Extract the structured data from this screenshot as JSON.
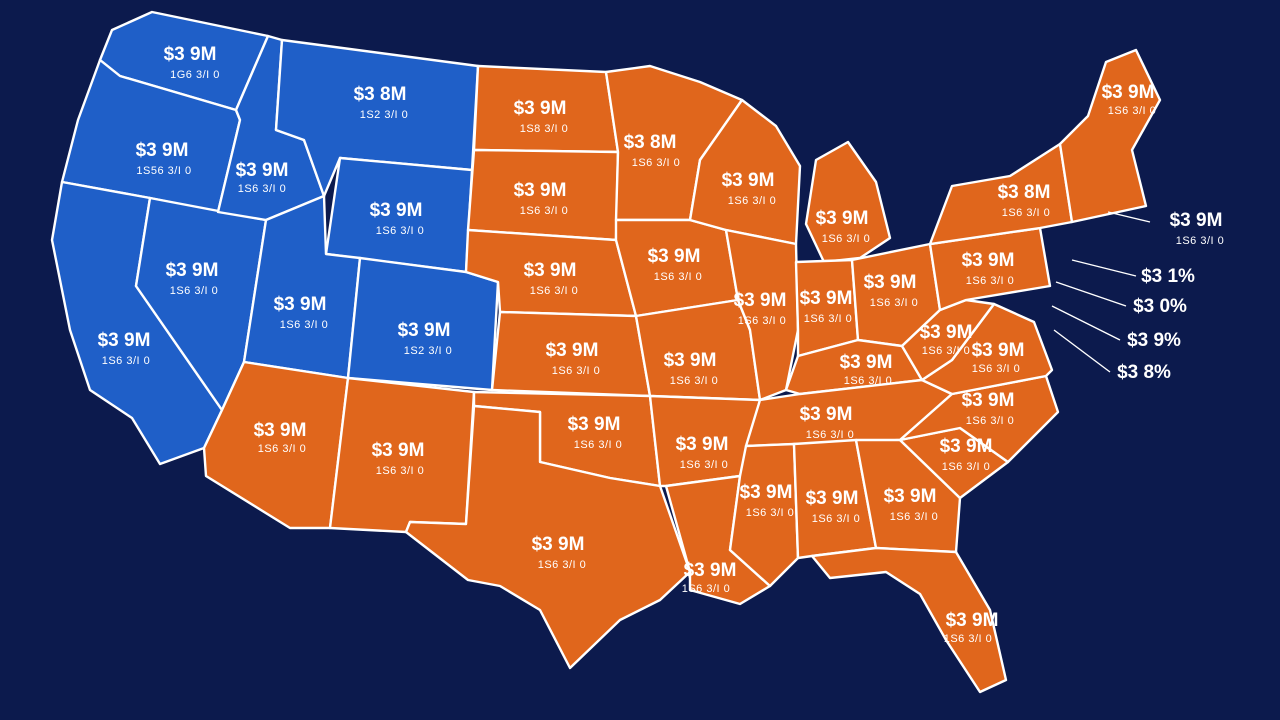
{
  "colors": {
    "background": "#0c1a4d",
    "blue": "#1f5fc8",
    "orange": "#e0661c",
    "border": "#ffffff"
  },
  "states": {
    "wa": {
      "fill": "blue",
      "value": "$3 9M",
      "sub": "1G6 3/I 0"
    },
    "or": {
      "fill": "blue",
      "value": "$3 9M",
      "sub": "1S56 3/I 0"
    },
    "ca": {
      "fill": "blue",
      "value": "$3 9M",
      "sub": "1S6 3/I 0"
    },
    "nv": {
      "fill": "blue",
      "value": "$3 9M",
      "sub": "1S6 3/I 0"
    },
    "id": {
      "fill": "blue",
      "value": "$3 9M",
      "sub": "1S6 3/I 0"
    },
    "mt": {
      "fill": "blue",
      "value": "$3 8M",
      "sub": "1S2 3/I 0"
    },
    "wy": {
      "fill": "blue",
      "value": "$3 9M",
      "sub": "1S6 3/I 0"
    },
    "ut": {
      "fill": "blue",
      "value": "$3 9M",
      "sub": "1S6 3/I 0"
    },
    "co": {
      "fill": "blue",
      "value": "$3 9M",
      "sub": "1S2 3/I 0"
    },
    "az": {
      "fill": "orange",
      "value": "$3 9M",
      "sub": "1S6 3/I 0"
    },
    "nm": {
      "fill": "orange",
      "value": "$3 9M",
      "sub": "1S6 3/I 0"
    },
    "nd": {
      "fill": "orange",
      "value": "$3 9M",
      "sub": "1S8 3/I 0"
    },
    "sd": {
      "fill": "orange",
      "value": "$3 9M",
      "sub": "1S6 3/I 0"
    },
    "ne": {
      "fill": "orange",
      "value": "$3 9M",
      "sub": "1S6 3/I 0"
    },
    "ks": {
      "fill": "orange",
      "value": "$3 9M",
      "sub": "1S6 3/I 0"
    },
    "ok": {
      "fill": "orange",
      "value": "$3 9M",
      "sub": "1S6 3/I 0"
    },
    "tx": {
      "fill": "orange",
      "value": "$3 9M",
      "sub": "1S6 3/I 0"
    },
    "mn": {
      "fill": "orange",
      "value": "$3 8M",
      "sub": "1S6 3/I 0"
    },
    "ia": {
      "fill": "orange",
      "value": "$3 9M",
      "sub": "1S6 3/I 0"
    },
    "mo": {
      "fill": "orange",
      "value": "$3 9M",
      "sub": "1S6 3/I 0"
    },
    "ar": {
      "fill": "orange",
      "value": "$3 9M",
      "sub": "1S6 3/I 0"
    },
    "la": {
      "fill": "orange",
      "value": "$3 9M",
      "sub": "1S6 3/I 0"
    },
    "wi": {
      "fill": "orange",
      "value": "$3 9M",
      "sub": "1S6 3/I 0"
    },
    "il": {
      "fill": "orange",
      "value": "$3 9M",
      "sub": "1S6 3/I 0"
    },
    "mi": {
      "fill": "orange",
      "value": "$3 9M",
      "sub": "1S6 3/I 0"
    },
    "in": {
      "fill": "orange",
      "value": "$3 9M",
      "sub": "1S6 3/I 0"
    },
    "oh": {
      "fill": "orange",
      "value": "$3 9M",
      "sub": "1S6 3/I 0"
    },
    "ky": {
      "fill": "orange",
      "value": "$3 9M",
      "sub": "1S6 3/I 0"
    },
    "tn": {
      "fill": "orange",
      "value": "$3 9M",
      "sub": "1S6 3/I 0"
    },
    "ms": {
      "fill": "orange",
      "value": "$3 9M",
      "sub": "1S6 3/I 0"
    },
    "al": {
      "fill": "orange",
      "value": "$3 9M",
      "sub": "1S6 3/I 0"
    },
    "ga": {
      "fill": "orange",
      "value": "$3 9M",
      "sub": "1S6 3/I 0"
    },
    "fl": {
      "fill": "orange",
      "value": "$3 9M",
      "sub": "1S6 3/I 0"
    },
    "sc": {
      "fill": "orange",
      "value": "$3 9M",
      "sub": "1S6 3/I 0"
    },
    "nc": {
      "fill": "orange",
      "value": "$3 9M",
      "sub": "1S6 3/I 0"
    },
    "va": {
      "fill": "orange",
      "value": "$3 9M",
      "sub": "1S6 3/I 0"
    },
    "wv": {
      "fill": "orange",
      "value": "$3 9M",
      "sub": "1S6 3/I 0"
    },
    "pa": {
      "fill": "orange",
      "value": "$3 9M",
      "sub": "1S6 3/I 0"
    },
    "ny": {
      "fill": "orange",
      "value": "$3 8M",
      "sub": "1S6 3/I 0"
    },
    "ne_region": {
      "fill": "orange",
      "value": "$3 9M",
      "sub": "1S6 3/I 0"
    }
  },
  "callouts": [
    {
      "value": "$3 9M",
      "sub": "1S6 3/I 0"
    },
    {
      "value": "$3 1%"
    },
    {
      "value": "$3 0%"
    },
    {
      "value": "$3 9%"
    },
    {
      "value": "$3 8%"
    }
  ]
}
